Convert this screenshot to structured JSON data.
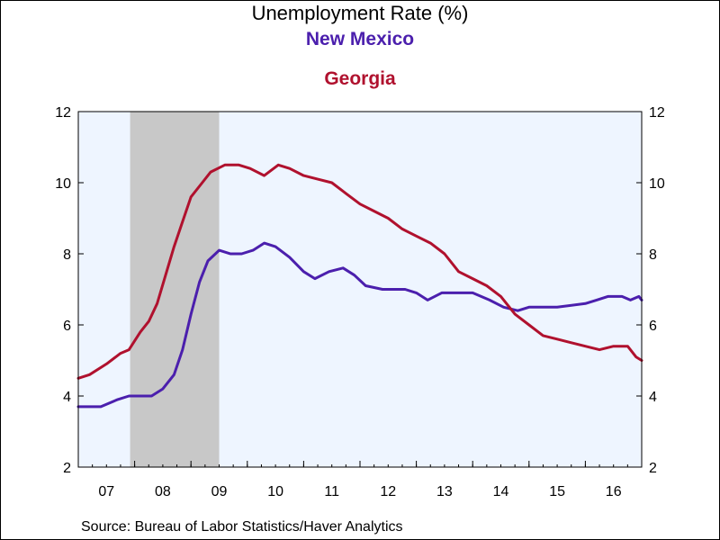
{
  "chart_data": {
    "type": "line",
    "title": "Unemployment Rate (%)",
    "xlabel": "",
    "ylabel": "",
    "ylim": [
      2,
      12
    ],
    "y_ticks": [
      2,
      4,
      6,
      8,
      10,
      12
    ],
    "x_range": [
      2007.0,
      2017.0
    ],
    "x_ticks": [
      {
        "label": "07",
        "year": 2007
      },
      {
        "label": "08",
        "year": 2008
      },
      {
        "label": "09",
        "year": 2009
      },
      {
        "label": "10",
        "year": 2010
      },
      {
        "label": "11",
        "year": 2011
      },
      {
        "label": "12",
        "year": 2012
      },
      {
        "label": "13",
        "year": 2013
      },
      {
        "label": "14",
        "year": 2014
      },
      {
        "label": "15",
        "year": 2015
      },
      {
        "label": "16",
        "year": 2016
      }
    ],
    "recession": {
      "start": 2007.92,
      "end": 2009.5
    },
    "grid": false,
    "colors": {
      "plot_background": "#eef5ff",
      "recession_shading": "#c8c8c8"
    },
    "series": [
      {
        "name": "New Mexico",
        "color": "#4b1fad",
        "points": [
          [
            2007.0,
            3.7
          ],
          [
            2007.4,
            3.7
          ],
          [
            2007.7,
            3.9
          ],
          [
            2007.9,
            4.0
          ],
          [
            2008.0,
            4.0
          ],
          [
            2008.3,
            4.0
          ],
          [
            2008.5,
            4.2
          ],
          [
            2008.7,
            4.6
          ],
          [
            2008.85,
            5.3
          ],
          [
            2009.0,
            6.3
          ],
          [
            2009.15,
            7.2
          ],
          [
            2009.3,
            7.8
          ],
          [
            2009.5,
            8.1
          ],
          [
            2009.7,
            8.0
          ],
          [
            2009.9,
            8.0
          ],
          [
            2010.1,
            8.1
          ],
          [
            2010.3,
            8.3
          ],
          [
            2010.5,
            8.2
          ],
          [
            2010.75,
            7.9
          ],
          [
            2011.0,
            7.5
          ],
          [
            2011.2,
            7.3
          ],
          [
            2011.45,
            7.5
          ],
          [
            2011.7,
            7.6
          ],
          [
            2011.9,
            7.4
          ],
          [
            2012.1,
            7.1
          ],
          [
            2012.4,
            7.0
          ],
          [
            2012.8,
            7.0
          ],
          [
            2013.0,
            6.9
          ],
          [
            2013.2,
            6.7
          ],
          [
            2013.45,
            6.9
          ],
          [
            2013.7,
            6.9
          ],
          [
            2014.0,
            6.9
          ],
          [
            2014.3,
            6.7
          ],
          [
            2014.55,
            6.5
          ],
          [
            2014.8,
            6.4
          ],
          [
            2015.0,
            6.5
          ],
          [
            2015.5,
            6.5
          ],
          [
            2016.0,
            6.6
          ],
          [
            2016.2,
            6.7
          ],
          [
            2016.4,
            6.8
          ],
          [
            2016.65,
            6.8
          ],
          [
            2016.8,
            6.7
          ],
          [
            2016.95,
            6.8
          ],
          [
            2017.0,
            6.7
          ]
        ]
      },
      {
        "name": "Georgia",
        "color": "#b0112e",
        "points": [
          [
            2007.0,
            4.5
          ],
          [
            2007.2,
            4.6
          ],
          [
            2007.5,
            4.9
          ],
          [
            2007.75,
            5.2
          ],
          [
            2007.9,
            5.3
          ],
          [
            2008.1,
            5.8
          ],
          [
            2008.25,
            6.1
          ],
          [
            2008.4,
            6.6
          ],
          [
            2008.55,
            7.4
          ],
          [
            2008.7,
            8.2
          ],
          [
            2008.85,
            8.9
          ],
          [
            2009.0,
            9.6
          ],
          [
            2009.2,
            10.0
          ],
          [
            2009.35,
            10.3
          ],
          [
            2009.6,
            10.5
          ],
          [
            2009.85,
            10.5
          ],
          [
            2010.05,
            10.4
          ],
          [
            2010.3,
            10.2
          ],
          [
            2010.55,
            10.5
          ],
          [
            2010.75,
            10.4
          ],
          [
            2011.0,
            10.2
          ],
          [
            2011.25,
            10.1
          ],
          [
            2011.5,
            10.0
          ],
          [
            2011.75,
            9.7
          ],
          [
            2012.0,
            9.4
          ],
          [
            2012.25,
            9.2
          ],
          [
            2012.5,
            9.0
          ],
          [
            2012.75,
            8.7
          ],
          [
            2013.0,
            8.5
          ],
          [
            2013.25,
            8.3
          ],
          [
            2013.5,
            8.0
          ],
          [
            2013.75,
            7.5
          ],
          [
            2014.0,
            7.3
          ],
          [
            2014.25,
            7.1
          ],
          [
            2014.5,
            6.8
          ],
          [
            2014.75,
            6.3
          ],
          [
            2015.0,
            6.0
          ],
          [
            2015.25,
            5.7
          ],
          [
            2015.5,
            5.6
          ],
          [
            2015.75,
            5.5
          ],
          [
            2016.0,
            5.4
          ],
          [
            2016.25,
            5.3
          ],
          [
            2016.5,
            5.4
          ],
          [
            2016.75,
            5.4
          ],
          [
            2016.9,
            5.1
          ],
          [
            2017.0,
            5.0
          ]
        ]
      }
    ]
  },
  "source_text": "Source:  Bureau of Labor Statistics/Haver Analytics"
}
